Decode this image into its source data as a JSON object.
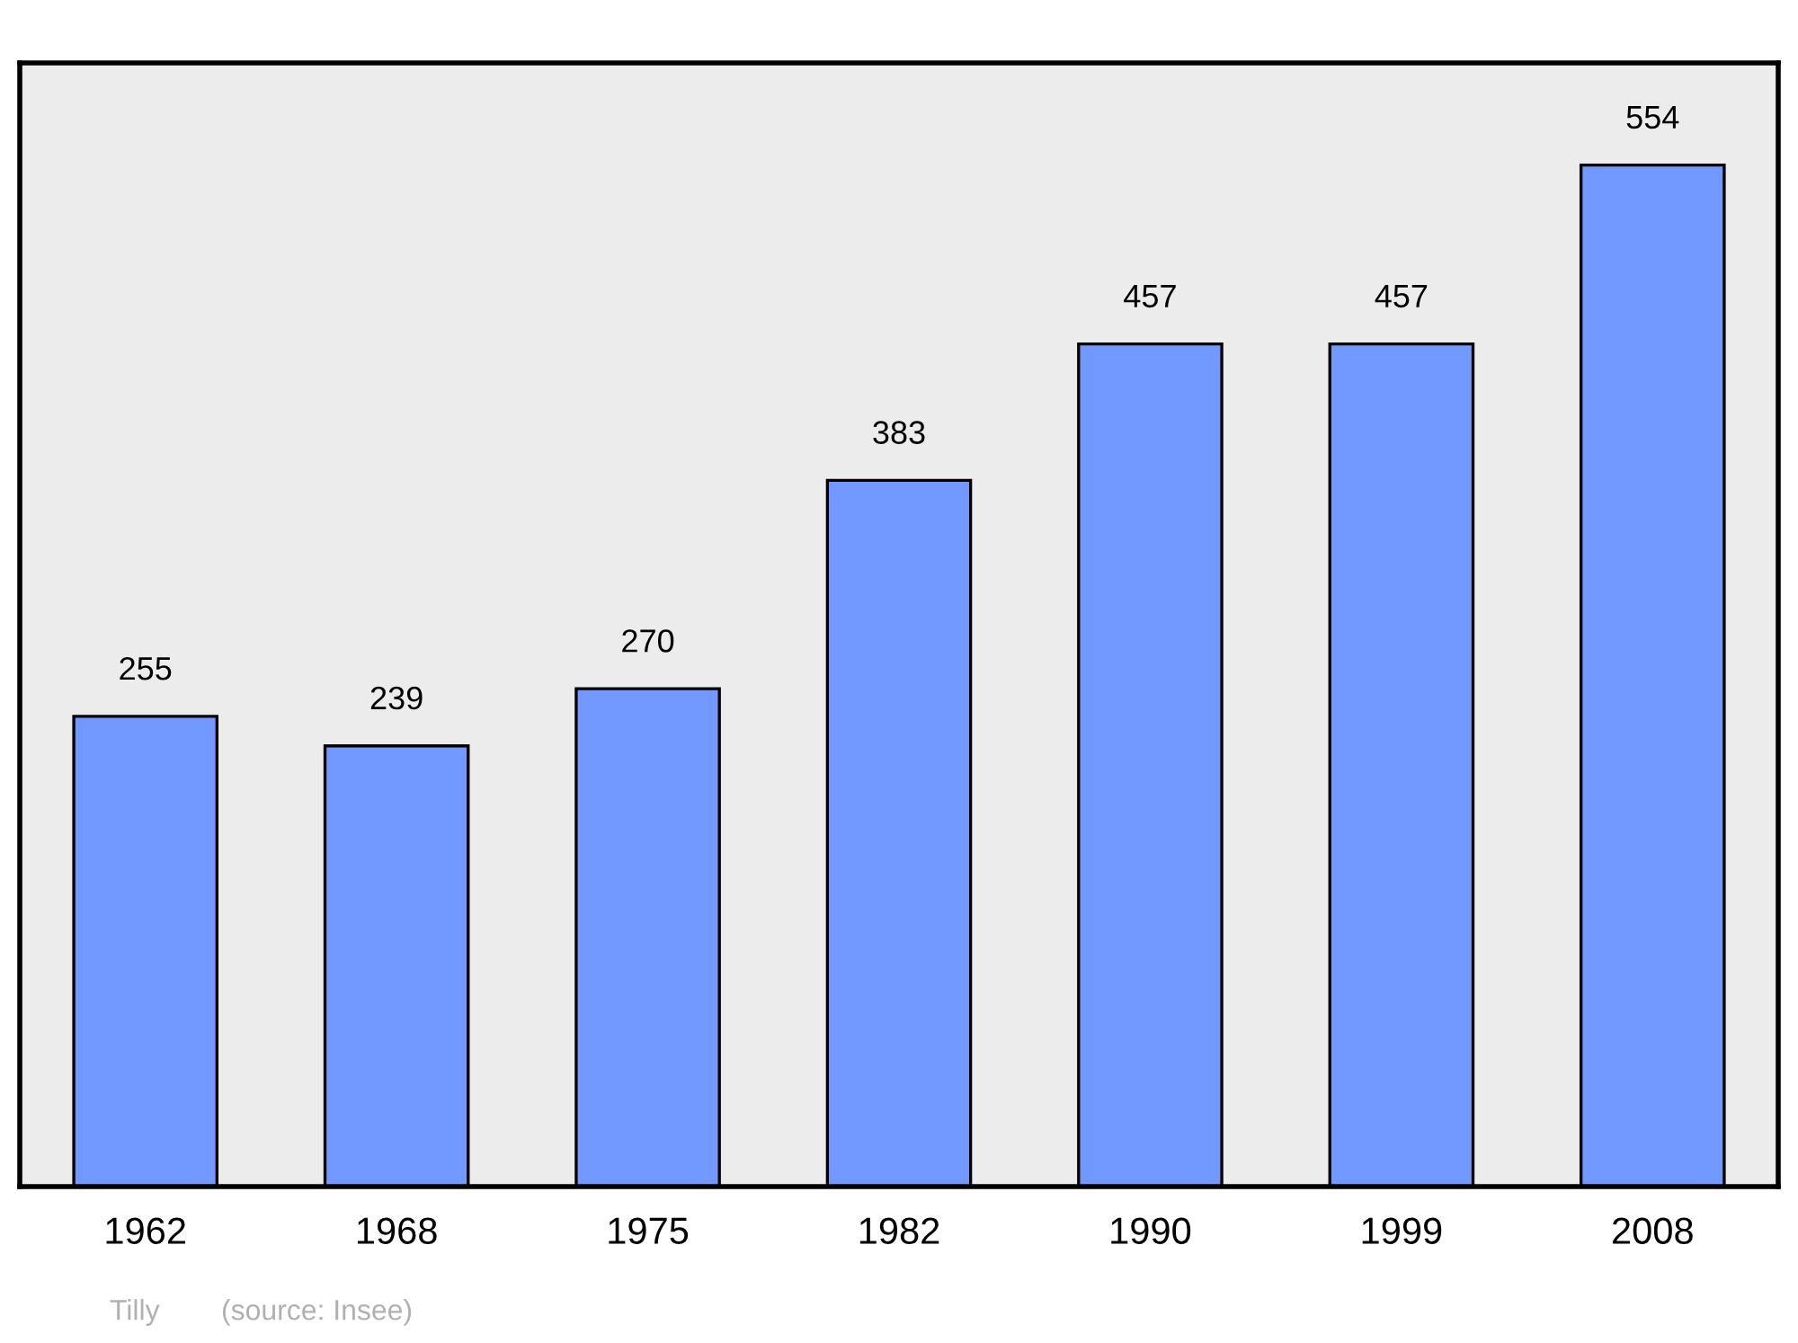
{
  "chart_data": {
    "type": "bar",
    "categories": [
      "1962",
      "1968",
      "1975",
      "1982",
      "1990",
      "1999",
      "2008"
    ],
    "values": [
      255,
      239,
      270,
      383,
      457,
      457,
      554
    ],
    "color": "#7299ff",
    "data_labels": true,
    "grid": false,
    "legend": false,
    "annotations": [
      "Tilly",
      "(source: Insee)"
    ]
  }
}
